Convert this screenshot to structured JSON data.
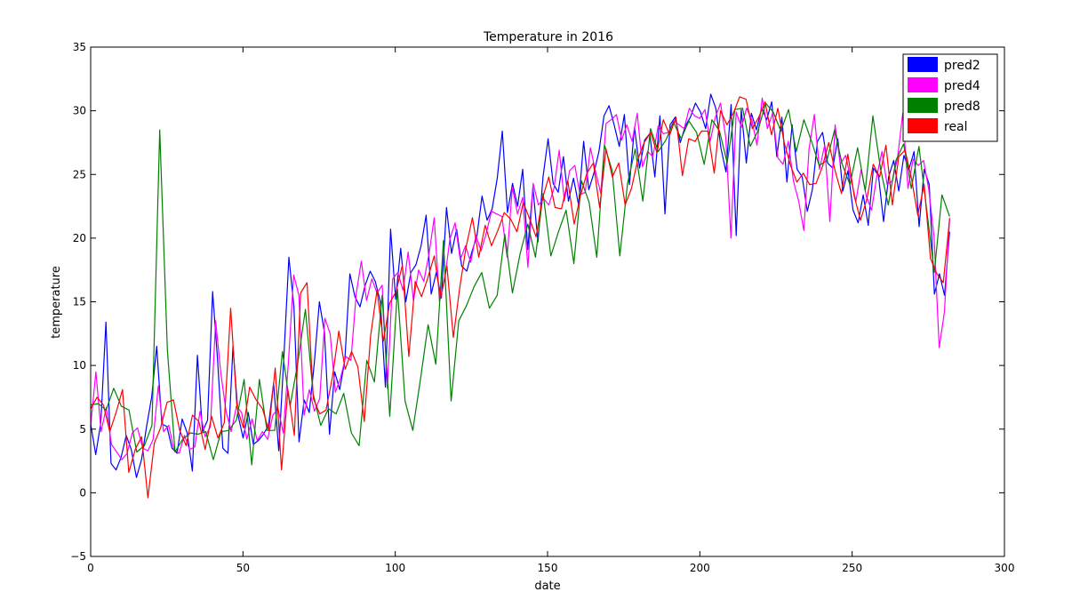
{
  "chart_data": {
    "type": "line",
    "title": "Temperature in 2016",
    "xlabel": "date",
    "ylabel": "temperature",
    "xlim": [
      0,
      300
    ],
    "ylim": [
      -5,
      35
    ],
    "xticks": [
      "0",
      "50",
      "100",
      "150",
      "200",
      "250",
      "300"
    ],
    "yticks": [
      "35",
      "30",
      "25",
      "20",
      "15",
      "10",
      "5",
      "0",
      "−5"
    ],
    "grid": false,
    "legend_position": "top-right",
    "series": [
      {
        "name": "pred2",
        "color": "#0000ff",
        "values": [
          5.4,
          3,
          5.5,
          13.4,
          2.3,
          1.8,
          2.8,
          4.5,
          3.4,
          1.2,
          2.6,
          5.2,
          7.5,
          11.5,
          5.4,
          5.2,
          3.5,
          3.1,
          5.8,
          4.7,
          1.7,
          10.8,
          4.8,
          5.7,
          15.8,
          10.3,
          3.5,
          3.1,
          11.5,
          6.1,
          4.3,
          6.3,
          3.8,
          4.1,
          4.6,
          5.3,
          8.6,
          3.3,
          10.6,
          18.5,
          14.6,
          4,
          7.3,
          6.3,
          10.2,
          15,
          12.6,
          4.6,
          9.5,
          8.1,
          10.4,
          17.2,
          15.4,
          14.6,
          16.3,
          17.4,
          16.6,
          15,
          8.3,
          20.7,
          15.2,
          19.2,
          15,
          17.3,
          17.9,
          19.4,
          21.8,
          15.6,
          17.3,
          15.3,
          22.4,
          18.8,
          20.7,
          17.8,
          17.4,
          18.9,
          20.2,
          23.3,
          21.4,
          22.3,
          24.7,
          28.4,
          22,
          24.3,
          22.5,
          25.4,
          19.1,
          24,
          19.7,
          24.8,
          27.8,
          24.3,
          23.6,
          26.4,
          22.9,
          24.7,
          22.6,
          27.6,
          23.8,
          25.1,
          26.8,
          29.6,
          30.4,
          28.9,
          27.2,
          29.7,
          24.2,
          28.7,
          25.5,
          27.7,
          28.2,
          24.8,
          29.6,
          21.9,
          28.9,
          29.5,
          27.5,
          28.8,
          29.5,
          30.6,
          29.9,
          28.6,
          31.3,
          30.2,
          27.1,
          25.2,
          30.5,
          20.2,
          30.1,
          25.9,
          29.8,
          28.5,
          30.2,
          29.3,
          30.7,
          26.4,
          29.5,
          24.4,
          28.9,
          25.4,
          24.8,
          22.1,
          23.8,
          27.6,
          28.3,
          25.9,
          25.5,
          27.8,
          23.7,
          25.3,
          22.2,
          21.2,
          23.4,
          21,
          25.5,
          24.9,
          21.3,
          24.8,
          26.1,
          23.7,
          26.5,
          25.4,
          26.8,
          20.9,
          25.4,
          24.2,
          15.6,
          17.2,
          15.5,
          20.5
        ]
      },
      {
        "name": "pred4",
        "color": "#ff00ff",
        "values": [
          5.3,
          9.5,
          4.8,
          6.7,
          3.8,
          3.2,
          2.6,
          3.1,
          4.7,
          5.1,
          3.5,
          3.3,
          4.2,
          8.4,
          4.8,
          5.3,
          3.4,
          3.1,
          4.5,
          3.4,
          3.6,
          6.4,
          4.4,
          5.2,
          13.5,
          9.4,
          6.4,
          4.8,
          6.8,
          6.3,
          4.2,
          5.8,
          4.1,
          4.8,
          4.2,
          6.1,
          6.6,
          4.7,
          10.3,
          17.1,
          15.5,
          6.1,
          8.1,
          6.4,
          7.4,
          13.7,
          12.5,
          7.9,
          9,
          10.7,
          10.4,
          15.6,
          18.2,
          15.1,
          16.8,
          15.7,
          16.3,
          8.2,
          16.8,
          17.3,
          15.9,
          18.9,
          15.1,
          17.5,
          16.6,
          18.8,
          21.6,
          15,
          16.7,
          19.9,
          21.2,
          18.3,
          19.4,
          18.1,
          20.2,
          19,
          20.4,
          22.1,
          21.9,
          21.7,
          18.5,
          24,
          21.9,
          23.2,
          17.7,
          24.3,
          22.6,
          23.1,
          22.6,
          23.9,
          26.9,
          22.9,
          25.3,
          25.7,
          23.4,
          23.6,
          27.1,
          25.2,
          23.5,
          29,
          29.3,
          29.7,
          27.7,
          28.9,
          27.6,
          29.8,
          25.6,
          26.8,
          26.4,
          28.8,
          28.2,
          28.3,
          29.2,
          28.9,
          28.6,
          30.2,
          29.6,
          29.4,
          30.1,
          27.6,
          29.5,
          30.6,
          27.9,
          20,
          29.9,
          28.7,
          30.2,
          29.3,
          27.3,
          31,
          28.6,
          29.8,
          26.3,
          25.8,
          27.6,
          24.5,
          22.9,
          20.6,
          27,
          29.7,
          25.4,
          27.3,
          21.3,
          28.9,
          25.8,
          26.5,
          24.7,
          22.9,
          25.4,
          23.3,
          22.2,
          24.8,
          26.8,
          24.2,
          24.5,
          26.3,
          29.8,
          23.9,
          26.2,
          25.7,
          26.1,
          23.8,
          20.1,
          11.4,
          14.2,
          21.6
        ]
      },
      {
        "name": "pred8",
        "color": "#008000",
        "values": [
          6.9,
          7,
          6.5,
          8.2,
          6.8,
          6.5,
          3.2,
          3.7,
          5.3,
          28.5,
          11.2,
          3.2,
          4.2,
          4.7,
          4.6,
          4.8,
          2.6,
          4.8,
          4.9,
          5.7,
          8.9,
          2.2,
          8.9,
          4.9,
          4.9,
          11.1,
          6.8,
          10.2,
          14.4,
          7.8,
          5.3,
          6.6,
          6.2,
          7.8,
          4.7,
          3.7,
          10.4,
          8.7,
          15.5,
          6,
          16,
          7.2,
          4.9,
          8.9,
          13.2,
          10.1,
          19.8,
          7.2,
          13.5,
          14.7,
          16.2,
          17.3,
          14.5,
          15.5,
          20.3,
          15.7,
          18.8,
          21.1,
          18.5,
          23.5,
          18.6,
          20.5,
          22.2,
          18,
          24.5,
          22.8,
          18.5,
          27.3,
          25.3,
          18.6,
          24.3,
          27,
          22.9,
          28.6,
          26.8,
          27.7,
          29.1,
          27.8,
          29.2,
          28.3,
          25.8,
          29.3,
          28.4,
          25.9,
          30.1,
          30.2,
          27.2,
          28.4,
          30.6,
          29.9,
          28.4,
          30.1,
          26.8,
          29.3,
          27.6,
          25.7,
          26.1,
          28.5,
          25.8,
          24.2,
          27.1,
          23.7,
          29.6,
          25.4,
          22.6,
          26.1,
          27.4,
          23.9,
          27.2,
          22.3,
          17.3,
          23.4,
          21.7
        ]
      },
      {
        "name": "real",
        "color": "#ff0000",
        "values": [
          6.6,
          7.5,
          6.9,
          4.8,
          6.3,
          8.1,
          1.6,
          3.4,
          4.4,
          -0.4,
          3.9,
          5.1,
          7.1,
          7.3,
          4.9,
          3.7,
          6.1,
          5.6,
          3.4,
          6,
          4.3,
          5.5,
          14.5,
          6.7,
          5.1,
          8.3,
          7.3,
          6.6,
          4.9,
          9.8,
          1.8,
          8.1,
          4.5,
          15.7,
          16.5,
          7.4,
          6.2,
          6.5,
          9.1,
          12.7,
          9.7,
          11.1,
          9.9,
          5.6,
          12.3,
          15.9,
          11.9,
          14.9,
          15.8,
          17.9,
          10.7,
          16.6,
          15.4,
          16.9,
          18.6,
          15.3,
          17.8,
          12.2,
          16.1,
          19.3,
          21.6,
          18.5,
          21,
          19.4,
          20.6,
          22,
          21.5,
          20.5,
          22.8,
          21.5,
          20.1,
          23.1,
          24.8,
          22.4,
          22.3,
          24.5,
          21.1,
          23.4,
          25.1,
          25.9,
          22.4,
          27,
          24.8,
          25.9,
          22.6,
          23.9,
          26.2,
          27.5,
          28.3,
          26.7,
          29.3,
          28.1,
          29.5,
          24.9,
          27.8,
          27.6,
          28.4,
          28.4,
          25.1,
          30,
          28.9,
          29.8,
          31.1,
          30.9,
          28.6,
          29.5,
          30.7,
          28.1,
          30.2,
          27.5,
          25.7,
          24.4,
          25.1,
          24.2,
          24.3,
          25.6,
          27.5,
          25.3,
          23.5,
          26.6,
          23.3,
          21.4,
          23.1,
          25.8,
          24.8,
          27.3,
          22.6,
          26.4,
          26.9,
          24.7,
          21.8,
          24.2,
          18.4,
          17.2,
          16.5,
          21.5
        ]
      }
    ]
  }
}
